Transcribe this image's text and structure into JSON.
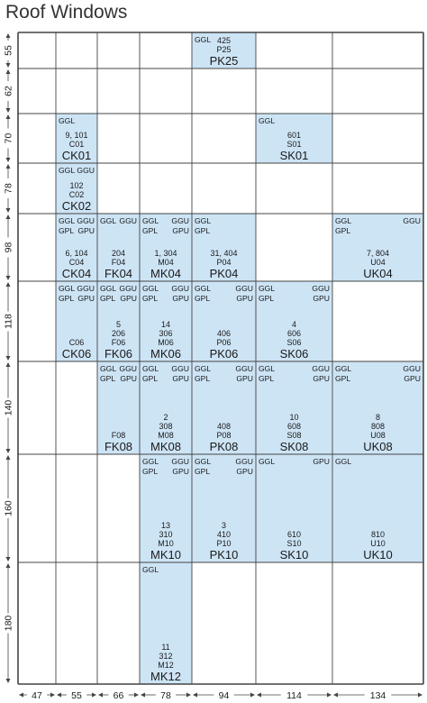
{
  "title": "Roof Windows",
  "colors": {
    "fill": "#cde4f5",
    "line": "#444444",
    "text": "#1a1a1a"
  },
  "columns": [
    "47",
    "55",
    "66",
    "78",
    "94",
    "114",
    "134"
  ],
  "rows": [
    "55",
    "62",
    "70",
    "78",
    "98",
    "118",
    "140",
    "160",
    "180"
  ],
  "cells": [
    {
      "col": 4,
      "row": 0,
      "tl": "GGL",
      "tr": "",
      "bl": "",
      "br": "",
      "codes": [
        "425",
        "P25"
      ],
      "big": "PK25"
    },
    {
      "col": 1,
      "row": 2,
      "tl": "GGL",
      "tr": "",
      "bl": "",
      "br": "",
      "codes": [
        "9, 101",
        "C01"
      ],
      "big": "CK01"
    },
    {
      "col": 5,
      "row": 2,
      "tl": "GGL",
      "tr": "",
      "bl": "",
      "br": "",
      "codes": [
        "601",
        "S01"
      ],
      "big": "SK01"
    },
    {
      "col": 1,
      "row": 3,
      "tl": "GGL",
      "tr": "GGU",
      "bl": "",
      "br": "",
      "codes": [
        "102",
        "C02"
      ],
      "big": "CK02"
    },
    {
      "col": 1,
      "row": 4,
      "tl": "GGL",
      "tr": "GGU",
      "bl": "GPL",
      "br": "GPU",
      "codes": [
        "6, 104",
        "C04"
      ],
      "big": "CK04"
    },
    {
      "col": 2,
      "row": 4,
      "tl": "GGL",
      "tr": "GGU",
      "bl": "",
      "br": "",
      "codes": [
        "204",
        "F04"
      ],
      "big": "FK04"
    },
    {
      "col": 3,
      "row": 4,
      "tl": "GGL",
      "tr": "GGU",
      "bl": "GPL",
      "br": "GPU",
      "codes": [
        "1, 304",
        "M04"
      ],
      "big": "MK04"
    },
    {
      "col": 4,
      "row": 4,
      "tl": "GGL",
      "tr": "",
      "bl": "GPL",
      "br": "",
      "codes": [
        "31, 404",
        "P04"
      ],
      "big": "PK04"
    },
    {
      "col": 6,
      "row": 4,
      "tl": "GGL",
      "tr": "GGU",
      "bl": "GPL",
      "br": "",
      "codes": [
        "7, 804",
        "U04"
      ],
      "big": "UK04"
    },
    {
      "col": 1,
      "row": 5,
      "tl": "GGL",
      "tr": "GGU",
      "bl": "GPL",
      "br": "GPU",
      "codes": [
        "C06"
      ],
      "big": "CK06"
    },
    {
      "col": 2,
      "row": 5,
      "tl": "GGL",
      "tr": "GGU",
      "bl": "GPL",
      "br": "GPU",
      "codes": [
        "5",
        "206",
        "F06"
      ],
      "big": "FK06"
    },
    {
      "col": 3,
      "row": 5,
      "tl": "GGL",
      "tr": "GGU",
      "bl": "GPL",
      "br": "GPU",
      "codes": [
        "14",
        "306",
        "M06"
      ],
      "big": "MK06"
    },
    {
      "col": 4,
      "row": 5,
      "tl": "GGL",
      "tr": "GGU",
      "bl": "GPL",
      "br": "GPU",
      "codes": [
        "406",
        "P06"
      ],
      "big": "PK06"
    },
    {
      "col": 5,
      "row": 5,
      "tl": "GGL",
      "tr": "GGU",
      "bl": "GPL",
      "br": "GPU",
      "codes": [
        "4",
        "606",
        "S06"
      ],
      "big": "SK06"
    },
    {
      "col": 2,
      "row": 6,
      "tl": "GGL",
      "tr": "GGU",
      "bl": "GPL",
      "br": "GPU",
      "codes": [
        "F08"
      ],
      "big": "FK08"
    },
    {
      "col": 3,
      "row": 6,
      "tl": "GGL",
      "tr": "GGU",
      "bl": "GPL",
      "br": "GPU",
      "codes": [
        "2",
        "308",
        "M08"
      ],
      "big": "MK08"
    },
    {
      "col": 4,
      "row": 6,
      "tl": "GGL",
      "tr": "GGU",
      "bl": "GPL",
      "br": "GPU",
      "codes": [
        "408",
        "P08"
      ],
      "big": "PK08"
    },
    {
      "col": 5,
      "row": 6,
      "tl": "GGL",
      "tr": "GGU",
      "bl": "GPL",
      "br": "GPU",
      "codes": [
        "10",
        "608",
        "S08"
      ],
      "big": "SK08"
    },
    {
      "col": 6,
      "row": 6,
      "tl": "GGL",
      "tr": "GGU",
      "bl": "GPL",
      "br": "GPU",
      "codes": [
        "8",
        "808",
        "U08"
      ],
      "big": "UK08"
    },
    {
      "col": 3,
      "row": 7,
      "tl": "GGL",
      "tr": "GGU",
      "bl": "GPL",
      "br": "GPU",
      "codes": [
        "13",
        "310",
        "M10"
      ],
      "big": "MK10"
    },
    {
      "col": 4,
      "row": 7,
      "tl": "GGL",
      "tr": "GGU",
      "bl": "GPL",
      "br": "GPU",
      "codes": [
        "3",
        "410",
        "P10"
      ],
      "big": "PK10"
    },
    {
      "col": 5,
      "row": 7,
      "tl": "GGL",
      "tr": "GPU",
      "bl": "",
      "br": "",
      "codes": [
        "610",
        "S10"
      ],
      "big": "SK10"
    },
    {
      "col": 6,
      "row": 7,
      "tl": "GGL",
      "tr": "",
      "bl": "",
      "br": "",
      "codes": [
        "810",
        "U10"
      ],
      "big": "UK10"
    },
    {
      "col": 3,
      "row": 8,
      "tl": "GGL",
      "tr": "",
      "bl": "",
      "br": "",
      "codes": [
        "11",
        "312",
        "M12"
      ],
      "big": "MK12"
    }
  ]
}
